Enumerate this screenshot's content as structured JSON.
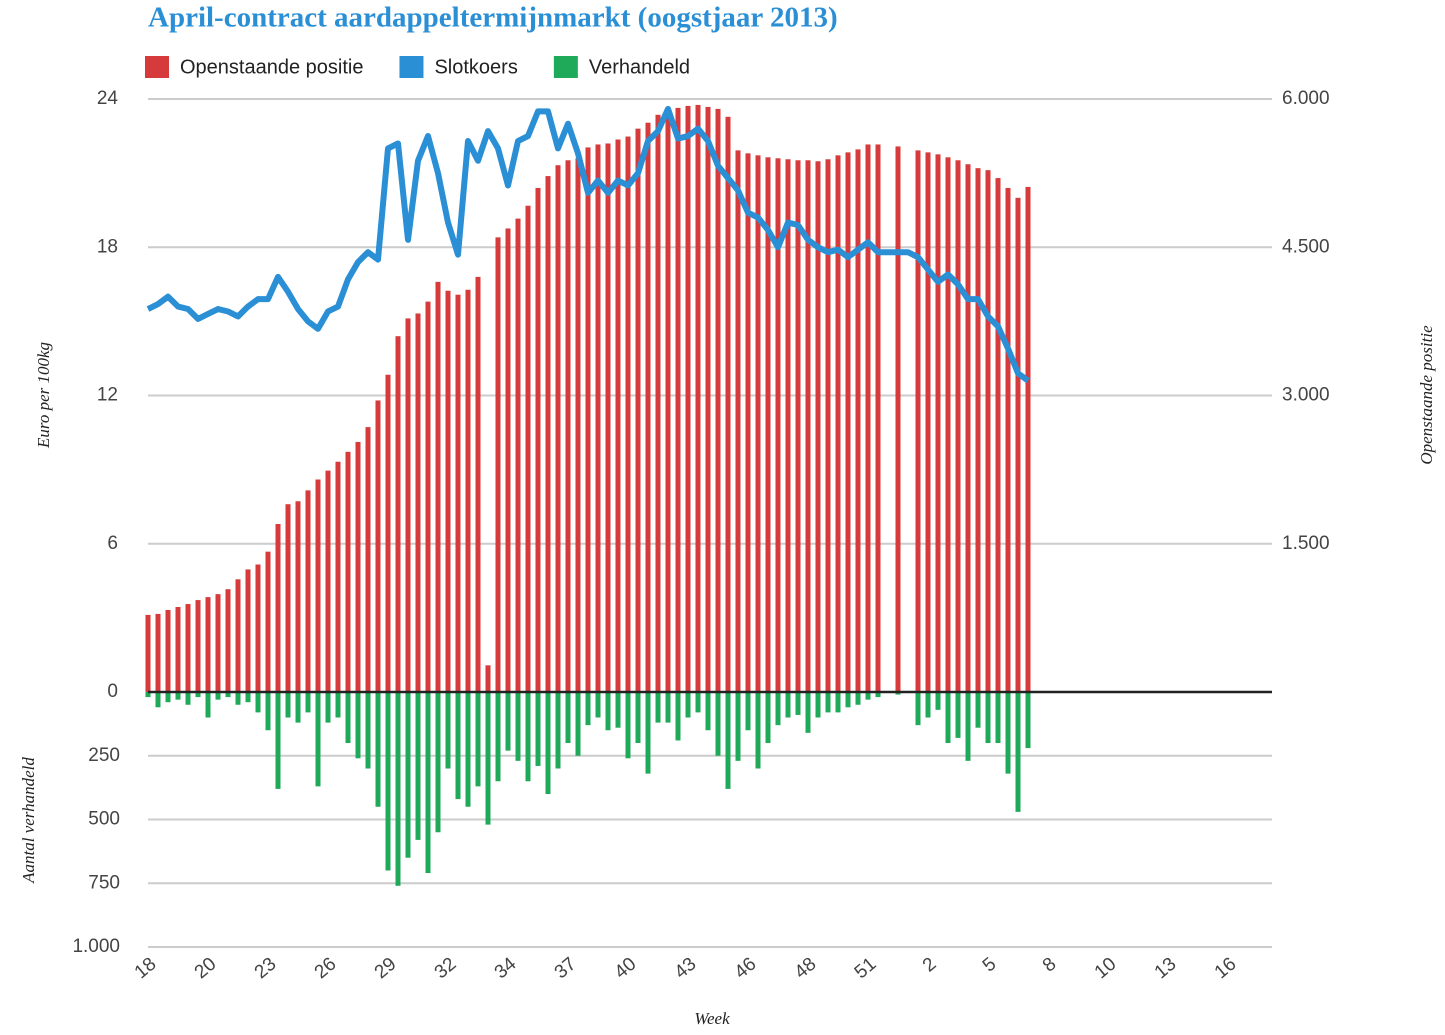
{
  "chart_data": [
    {
      "type": "bar",
      "title": "April-contract aardappeltermijnmarkt (oogstjaar 2013)",
      "ylabel": "Euro per 100kg",
      "y2label": "Openstaande positie",
      "legend": "top-left",
      "grid": true,
      "categories": [
        "18",
        null,
        null,
        null,
        null,
        null,
        "20",
        null,
        null,
        null,
        null,
        null,
        "23",
        null,
        null,
        null,
        null,
        null,
        "26",
        null,
        null,
        null,
        null,
        null,
        "29",
        null,
        null,
        null,
        null,
        null,
        "32",
        null,
        null,
        null,
        null,
        null,
        "34",
        null,
        null,
        null,
        null,
        null,
        "37",
        null,
        null,
        null,
        null,
        null,
        "40",
        null,
        null,
        null,
        null,
        null,
        "43",
        null,
        null,
        null,
        null,
        null,
        "46",
        null,
        null,
        null,
        null,
        null,
        "48",
        null,
        null,
        null,
        null,
        null,
        "51",
        null,
        null,
        null,
        null,
        null,
        "2",
        null,
        null,
        null,
        null,
        null,
        "5",
        null,
        null,
        null,
        null,
        null,
        "8",
        null,
        null,
        null,
        null,
        null,
        "10",
        null,
        null,
        null,
        null,
        null,
        "13",
        null,
        null,
        null,
        null,
        null,
        "16",
        null,
        null,
        null,
        null
      ],
      "ylim": [
        0,
        24
      ],
      "yticks": [
        0,
        6,
        12,
        18,
        24
      ],
      "y2lim": [
        0,
        6000
      ],
      "y2ticks": [
        {
          "value": 1500,
          "label": "1.500"
        },
        {
          "value": 3000,
          "label": "3.000"
        },
        {
          "value": 4500,
          "label": "4.500"
        },
        {
          "value": 6000,
          "label": "6.000"
        }
      ],
      "series": [
        {
          "name": "Openstaande positie",
          "type": "bar",
          "axis": "y2",
          "color": "#d63a3a",
          "values": [
            780,
            790,
            830,
            860,
            890,
            930,
            960,
            990,
            1040,
            1140,
            1240,
            1290,
            1420,
            1700,
            1900,
            1930,
            2040,
            2150,
            2240,
            2330,
            2430,
            2530,
            2680,
            2950,
            3210,
            3600,
            3780,
            3830,
            3950,
            4150,
            4060,
            4020,
            4070,
            4200,
            270,
            4600,
            4690,
            4790,
            4920,
            5100,
            5220,
            5330,
            5380,
            5400,
            5510,
            5540,
            5550,
            5590,
            5620,
            5700,
            5760,
            5840,
            5870,
            5910,
            5930,
            5940,
            5920,
            5900,
            5820,
            5480,
            5450,
            5430,
            5410,
            5400,
            5390,
            5380,
            5380,
            5370,
            5390,
            5430,
            5460,
            5490,
            5540,
            5540,
            null,
            5520,
            null,
            5480,
            5460,
            5440,
            5410,
            5380,
            5340,
            5300,
            5280,
            5200,
            5100,
            5000,
            5110,
            null,
            null,
            null,
            null,
            null,
            null,
            null,
            null,
            null,
            null,
            null,
            null,
            null,
            null,
            null,
            null,
            null,
            null,
            null,
            null,
            null,
            null,
            null,
            null
          ]
        },
        {
          "name": "Slotkoers",
          "type": "line",
          "color": "#2b8fd6",
          "values": [
            15.5,
            15.7,
            16.0,
            15.6,
            15.5,
            15.1,
            15.3,
            15.5,
            15.4,
            15.2,
            15.6,
            15.9,
            15.9,
            16.8,
            16.2,
            15.5,
            15.0,
            14.7,
            15.4,
            15.6,
            16.7,
            17.4,
            17.8,
            17.5,
            22.0,
            22.2,
            18.3,
            21.5,
            22.5,
            21.0,
            19.0,
            17.7,
            22.3,
            21.5,
            22.7,
            22.0,
            20.5,
            22.3,
            22.5,
            23.5,
            23.5,
            22.0,
            23.0,
            21.8,
            20.2,
            20.7,
            20.2,
            20.7,
            20.5,
            21.0,
            22.3,
            22.7,
            23.6,
            22.4,
            22.5,
            22.8,
            22.3,
            21.3,
            20.8,
            20.3,
            19.4,
            19.2,
            18.7,
            18.0,
            19.0,
            18.9,
            18.3,
            18.0,
            17.8,
            17.9,
            17.6,
            17.9,
            18.2,
            17.8,
            17.8,
            17.8,
            17.8,
            17.6,
            17.1,
            16.6,
            16.9,
            16.5,
            15.9,
            15.9,
            15.2,
            14.8,
            13.9,
            12.9,
            12.6,
            null,
            null,
            null,
            null,
            null,
            null,
            null,
            null,
            null,
            null,
            null,
            null,
            null,
            null,
            null,
            null,
            null,
            null,
            null,
            null,
            null,
            null,
            null,
            null
          ]
        }
      ]
    },
    {
      "type": "bar",
      "ylabel": "Aantal verhandeld",
      "xlabel": "Week",
      "inverted": true,
      "grid": true,
      "ylim": [
        0,
        1000
      ],
      "yticks": [
        250,
        500,
        750,
        {
          "value": 1000,
          "label": "1.000"
        }
      ],
      "series": [
        {
          "name": "Verhandeld",
          "type": "bar",
          "color": "#1faa59",
          "values": [
            20,
            60,
            40,
            30,
            50,
            20,
            100,
            30,
            20,
            50,
            40,
            80,
            150,
            380,
            100,
            120,
            80,
            370,
            120,
            100,
            200,
            260,
            300,
            450,
            700,
            760,
            650,
            580,
            710,
            550,
            300,
            420,
            450,
            370,
            520,
            350,
            230,
            270,
            350,
            290,
            400,
            300,
            200,
            250,
            130,
            100,
            150,
            140,
            260,
            200,
            320,
            120,
            120,
            190,
            100,
            80,
            150,
            250,
            380,
            270,
            150,
            300,
            200,
            130,
            100,
            90,
            160,
            100,
            80,
            80,
            60,
            50,
            30,
            20,
            null,
            10,
            null,
            130,
            100,
            70,
            200,
            180,
            270,
            140,
            200,
            200,
            320,
            470,
            220,
            null,
            null,
            null,
            null,
            null,
            null,
            null,
            null,
            null,
            null,
            null,
            null,
            null,
            null,
            null,
            null,
            null,
            null,
            null,
            null,
            null,
            null,
            null,
            null
          ]
        }
      ]
    }
  ]
}
